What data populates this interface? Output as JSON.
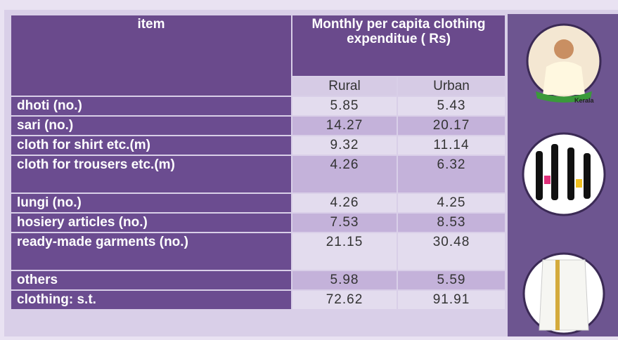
{
  "table": {
    "header": {
      "item": "item",
      "group": "Monthly per capita clothing expenditue ( Rs)",
      "rural": "Rural",
      "urban": "Urban"
    },
    "rows": [
      [
        "dhoti (no.)",
        "5.85",
        "5.43"
      ],
      [
        "sari (no.)",
        "14.27",
        "20.17"
      ],
      [
        "cloth for shirt etc.(m)",
        "9.32",
        "11.14"
      ],
      [
        "cloth for trousers etc.(m)",
        "4.26",
        "6.32"
      ],
      [
        "lungi (no.)",
        "4.26",
        "4.25"
      ],
      [
        "hosiery articles (no.)",
        "7.53",
        "8.53"
      ],
      [
        "ready-made garments (no.)",
        "21.15",
        "30.48"
      ],
      [
        "others",
        "5.98",
        "5.59"
      ],
      [
        "clothing: s.t.",
        "72.62",
        "91.91"
      ]
    ]
  },
  "images": {
    "badge": "Kerala"
  }
}
